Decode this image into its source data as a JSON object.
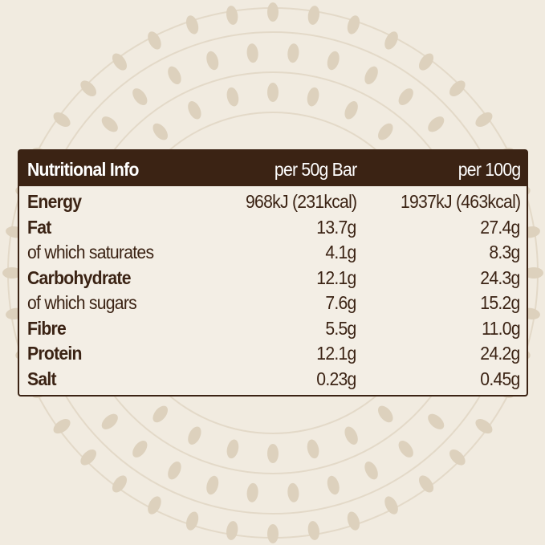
{
  "table": {
    "header": [
      "Nutritional Info",
      "per 50g Bar",
      "per 100g"
    ],
    "rows": [
      [
        "Energy",
        "968kJ (231kcal)",
        "1937kJ (463kcal)"
      ],
      [
        "Fat",
        "13.7g",
        "27.4g"
      ],
      [
        "of which saturates",
        "4.1g",
        "8.3g"
      ],
      [
        "Carbohydrate",
        "12.1g",
        "24.3g"
      ],
      [
        "of which sugars",
        "7.6g",
        "15.2g"
      ],
      [
        "Fibre",
        "5.5g",
        "11.0g"
      ],
      [
        "Protein",
        "12.1g",
        "24.2g"
      ],
      [
        "Salt",
        "0.23g",
        "0.45g"
      ]
    ]
  }
}
